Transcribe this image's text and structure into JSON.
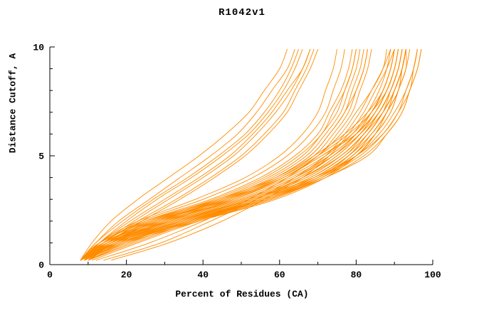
{
  "colors": {
    "curve": "#ff8c00",
    "axis": "#000000",
    "background": "#ffffff",
    "text": "#000000"
  },
  "chart_data": {
    "type": "line",
    "title": "R1042v1",
    "xlabel": "Percent of Residues (CA)",
    "ylabel": "Distance Cutoff, A",
    "xlim": [
      0,
      100
    ],
    "ylim": [
      0,
      10
    ],
    "x_major_ticks": [
      0,
      20,
      40,
      60,
      80,
      100
    ],
    "x_minor_step": 10,
    "y_major_ticks": [
      0,
      5,
      10
    ],
    "y_minor_step": 1,
    "grid": false,
    "legend": "none",
    "line_color": "#ff8c00",
    "y_grid": [
      0.2,
      1,
      2,
      3,
      4,
      5,
      6,
      7,
      8,
      9,
      9.9
    ],
    "series": [
      [
        8,
        11,
        16,
        23,
        31,
        39,
        46,
        52,
        56,
        60,
        62
      ],
      [
        8,
        12,
        18,
        26,
        34,
        42,
        49,
        54,
        58,
        62,
        64
      ],
      [
        9,
        13,
        20,
        28,
        37,
        45,
        52,
        57,
        61,
        64,
        66
      ],
      [
        8,
        12,
        19,
        27,
        36,
        44,
        51,
        56,
        60,
        63,
        65
      ],
      [
        9,
        14,
        22,
        31,
        40,
        48,
        54,
        59,
        63,
        66,
        68
      ],
      [
        8,
        13,
        21,
        30,
        39,
        47,
        53,
        58,
        62,
        66,
        68
      ],
      [
        9,
        15,
        24,
        34,
        43,
        51,
        57,
        62,
        65,
        68,
        70
      ],
      [
        8,
        14,
        23,
        33,
        42,
        50,
        56,
        61,
        64,
        67,
        69
      ],
      [
        9,
        13,
        23,
        38,
        51,
        60,
        66,
        70,
        72,
        74,
        75
      ],
      [
        8,
        14,
        24,
        40,
        53,
        62,
        68,
        72,
        74,
        76,
        77
      ],
      [
        9,
        15,
        25,
        42,
        55,
        64,
        70,
        73,
        76,
        78,
        79
      ],
      [
        10,
        16,
        27,
        44,
        57,
        66,
        71,
        75,
        77,
        79,
        80
      ],
      [
        9,
        16,
        28,
        45,
        58,
        67,
        72,
        76,
        78,
        80,
        81
      ],
      [
        10,
        17,
        29,
        46,
        59,
        68,
        73,
        77,
        79,
        81,
        82
      ],
      [
        9,
        17,
        30,
        47,
        60,
        69,
        74,
        78,
        80,
        82,
        83
      ],
      [
        10,
        18,
        31,
        48,
        61,
        70,
        75,
        79,
        81,
        83,
        84
      ],
      [
        8,
        15,
        26,
        43,
        56,
        65,
        71,
        74,
        77,
        79,
        80
      ],
      [
        9,
        16,
        28,
        46,
        59,
        68,
        73,
        77,
        80,
        82,
        83
      ],
      [
        8,
        14,
        28,
        48,
        62,
        72,
        79,
        83,
        86,
        88,
        89
      ],
      [
        8,
        15,
        30,
        50,
        64,
        73,
        80,
        84,
        87,
        89,
        90
      ],
      [
        9,
        16,
        31,
        51,
        65,
        74,
        80,
        84,
        87,
        89,
        90
      ],
      [
        8,
        15,
        32,
        52,
        66,
        75,
        81,
        85,
        88,
        90,
        91
      ],
      [
        9,
        17,
        33,
        53,
        66,
        75,
        81,
        85,
        88,
        90,
        91
      ],
      [
        8,
        14,
        29,
        49,
        63,
        73,
        80,
        85,
        88,
        90,
        91
      ],
      [
        9,
        16,
        32,
        52,
        66,
        76,
        82,
        86,
        89,
        91,
        92
      ],
      [
        8,
        17,
        34,
        54,
        68,
        77,
        82,
        86,
        89,
        91,
        92
      ],
      [
        9,
        18,
        35,
        55,
        68,
        77,
        83,
        87,
        89,
        91,
        92
      ],
      [
        8,
        16,
        33,
        53,
        67,
        76,
        82,
        86,
        89,
        91,
        92
      ],
      [
        9,
        17,
        34,
        55,
        69,
        78,
        83,
        87,
        90,
        92,
        93
      ],
      [
        8,
        15,
        31,
        51,
        65,
        74,
        81,
        86,
        89,
        91,
        92
      ],
      [
        9,
        16,
        32,
        53,
        67,
        76,
        82,
        87,
        90,
        92,
        93
      ],
      [
        8,
        18,
        36,
        56,
        70,
        78,
        83,
        87,
        90,
        92,
        93
      ],
      [
        9,
        19,
        37,
        57,
        70,
        79,
        84,
        88,
        90,
        92,
        93
      ],
      [
        8,
        17,
        35,
        56,
        69,
        78,
        84,
        88,
        90,
        92,
        93
      ],
      [
        9,
        18,
        36,
        57,
        70,
        79,
        84,
        88,
        91,
        92,
        93
      ],
      [
        8,
        13,
        26,
        45,
        60,
        70,
        78,
        84,
        87,
        89,
        90
      ],
      [
        9,
        14,
        27,
        47,
        61,
        71,
        79,
        84,
        88,
        90,
        91
      ],
      [
        8,
        13,
        25,
        44,
        59,
        69,
        77,
        83,
        87,
        89,
        90
      ],
      [
        9,
        15,
        29,
        50,
        64,
        74,
        81,
        86,
        89,
        91,
        92
      ],
      [
        8,
        14,
        27,
        46,
        61,
        71,
        80,
        85,
        88,
        90,
        91
      ],
      [
        9,
        19,
        38,
        58,
        71,
        80,
        85,
        88,
        91,
        92,
        93
      ],
      [
        8,
        18,
        37,
        57,
        71,
        79,
        85,
        89,
        91,
        93,
        93
      ],
      [
        9,
        20,
        39,
        59,
        72,
        80,
        85,
        89,
        91,
        93,
        94
      ],
      [
        10,
        20,
        36,
        55,
        70,
        80,
        86,
        90,
        93,
        95,
        96
      ],
      [
        10,
        22,
        38,
        57,
        72,
        82,
        88,
        92,
        94,
        96,
        97
      ],
      [
        9,
        19,
        34,
        53,
        69,
        80,
        87,
        91,
        93,
        95,
        96
      ],
      [
        10,
        21,
        37,
        56,
        71,
        81,
        87,
        91,
        94,
        95,
        96
      ],
      [
        11,
        23,
        39,
        58,
        72,
        83,
        88,
        92,
        94,
        96,
        97
      ],
      [
        12,
        26,
        40,
        52,
        62,
        70,
        76,
        80,
        84,
        87,
        88
      ],
      [
        14,
        29,
        42,
        54,
        64,
        72,
        77,
        81,
        84,
        87,
        89
      ],
      [
        16,
        31,
        45,
        56,
        66,
        73,
        78,
        82,
        85,
        88,
        90
      ]
    ]
  }
}
